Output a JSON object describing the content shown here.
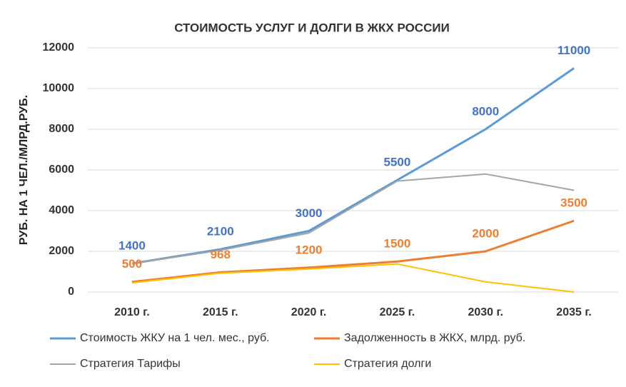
{
  "chart_data": {
    "type": "line",
    "title": "СТОИМОСТЬ УСЛУГ И ДОЛГИ В ЖКХ РОССИИ",
    "y_label": "РУБ. НА 1 ЧЕЛ./МЛРД.РУБ.",
    "categories": [
      "2010 г.",
      "2015 г.",
      "2020 г.",
      "2025 г.",
      "2030 г.",
      "2035 г."
    ],
    "series": [
      {
        "name": "Стоимость ЖКУ на 1 чел. мес., руб.",
        "color": "#5b9bd5",
        "width": 3,
        "data_labels": true,
        "label_color": "#4472c4",
        "values": [
          1400,
          2100,
          3000,
          5500,
          8000,
          11000
        ]
      },
      {
        "name": "Задолженность в ЖКХ, млрд. руб.",
        "color": "#ed7d31",
        "width": 3,
        "data_labels": true,
        "label_color": "#ed7d31",
        "values": [
          500,
          968,
          1200,
          1500,
          2000,
          3500
        ]
      },
      {
        "name": "Стратегия Тарифы",
        "color": "#a5a5a5",
        "width": 2,
        "data_labels": false,
        "values": [
          1400,
          2050,
          2900,
          5450,
          5800,
          5000
        ]
      },
      {
        "name": "Стратегия долги",
        "color": "#ffc000",
        "width": 2,
        "data_labels": false,
        "values": [
          450,
          930,
          1130,
          1380,
          500,
          0
        ]
      }
    ],
    "ylim": [
      0,
      12000
    ],
    "yticks": [
      0,
      2000,
      4000,
      6000,
      8000,
      10000,
      12000
    ],
    "grid": true,
    "legend": "bottom"
  }
}
